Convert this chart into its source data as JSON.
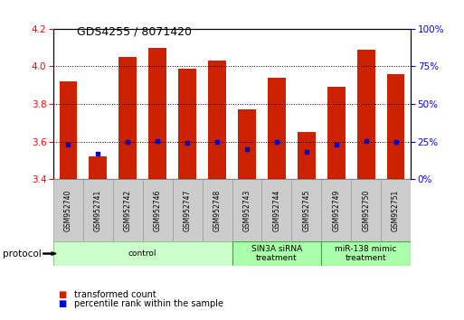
{
  "title": "GDS4255 / 8071420",
  "samples": [
    "GSM952740",
    "GSM952741",
    "GSM952742",
    "GSM952746",
    "GSM952747",
    "GSM952748",
    "GSM952743",
    "GSM952744",
    "GSM952745",
    "GSM952749",
    "GSM952750",
    "GSM952751"
  ],
  "red_values": [
    3.92,
    3.52,
    4.05,
    4.1,
    3.99,
    4.03,
    3.77,
    3.94,
    3.65,
    3.89,
    4.09,
    3.96
  ],
  "blue_values": [
    3.585,
    3.535,
    3.6,
    3.602,
    3.593,
    3.6,
    3.558,
    3.6,
    3.545,
    3.582,
    3.602,
    3.6
  ],
  "bar_color": "#cc2200",
  "blue_color": "#0000cc",
  "ylim_left": [
    3.4,
    4.2
  ],
  "yticks_left": [
    3.4,
    3.6,
    3.8,
    4.0,
    4.2
  ],
  "ylim_right": [
    0,
    100
  ],
  "yticks_right": [
    0,
    25,
    50,
    75,
    100
  ],
  "yticklabels_right": [
    "0%",
    "25%",
    "50%",
    "75%",
    "100%"
  ],
  "groups": [
    {
      "label": "control",
      "start": 0,
      "end": 6,
      "color": "#ccffcc",
      "edgecolor": "#88cc88"
    },
    {
      "label": "SIN3A siRNA\ntreatment",
      "start": 6,
      "end": 9,
      "color": "#aaffaa",
      "edgecolor": "#44aa44"
    },
    {
      "label": "miR-138 mimic\ntreatment",
      "start": 9,
      "end": 12,
      "color": "#aaffaa",
      "edgecolor": "#44aa44"
    }
  ],
  "protocol_label": "protocol",
  "bar_width": 0.6,
  "background_color": "#ffffff",
  "plot_bg": "#ffffff",
  "bar_base": 3.4,
  "label_color": "#cccccc",
  "label_edge": "#999999"
}
